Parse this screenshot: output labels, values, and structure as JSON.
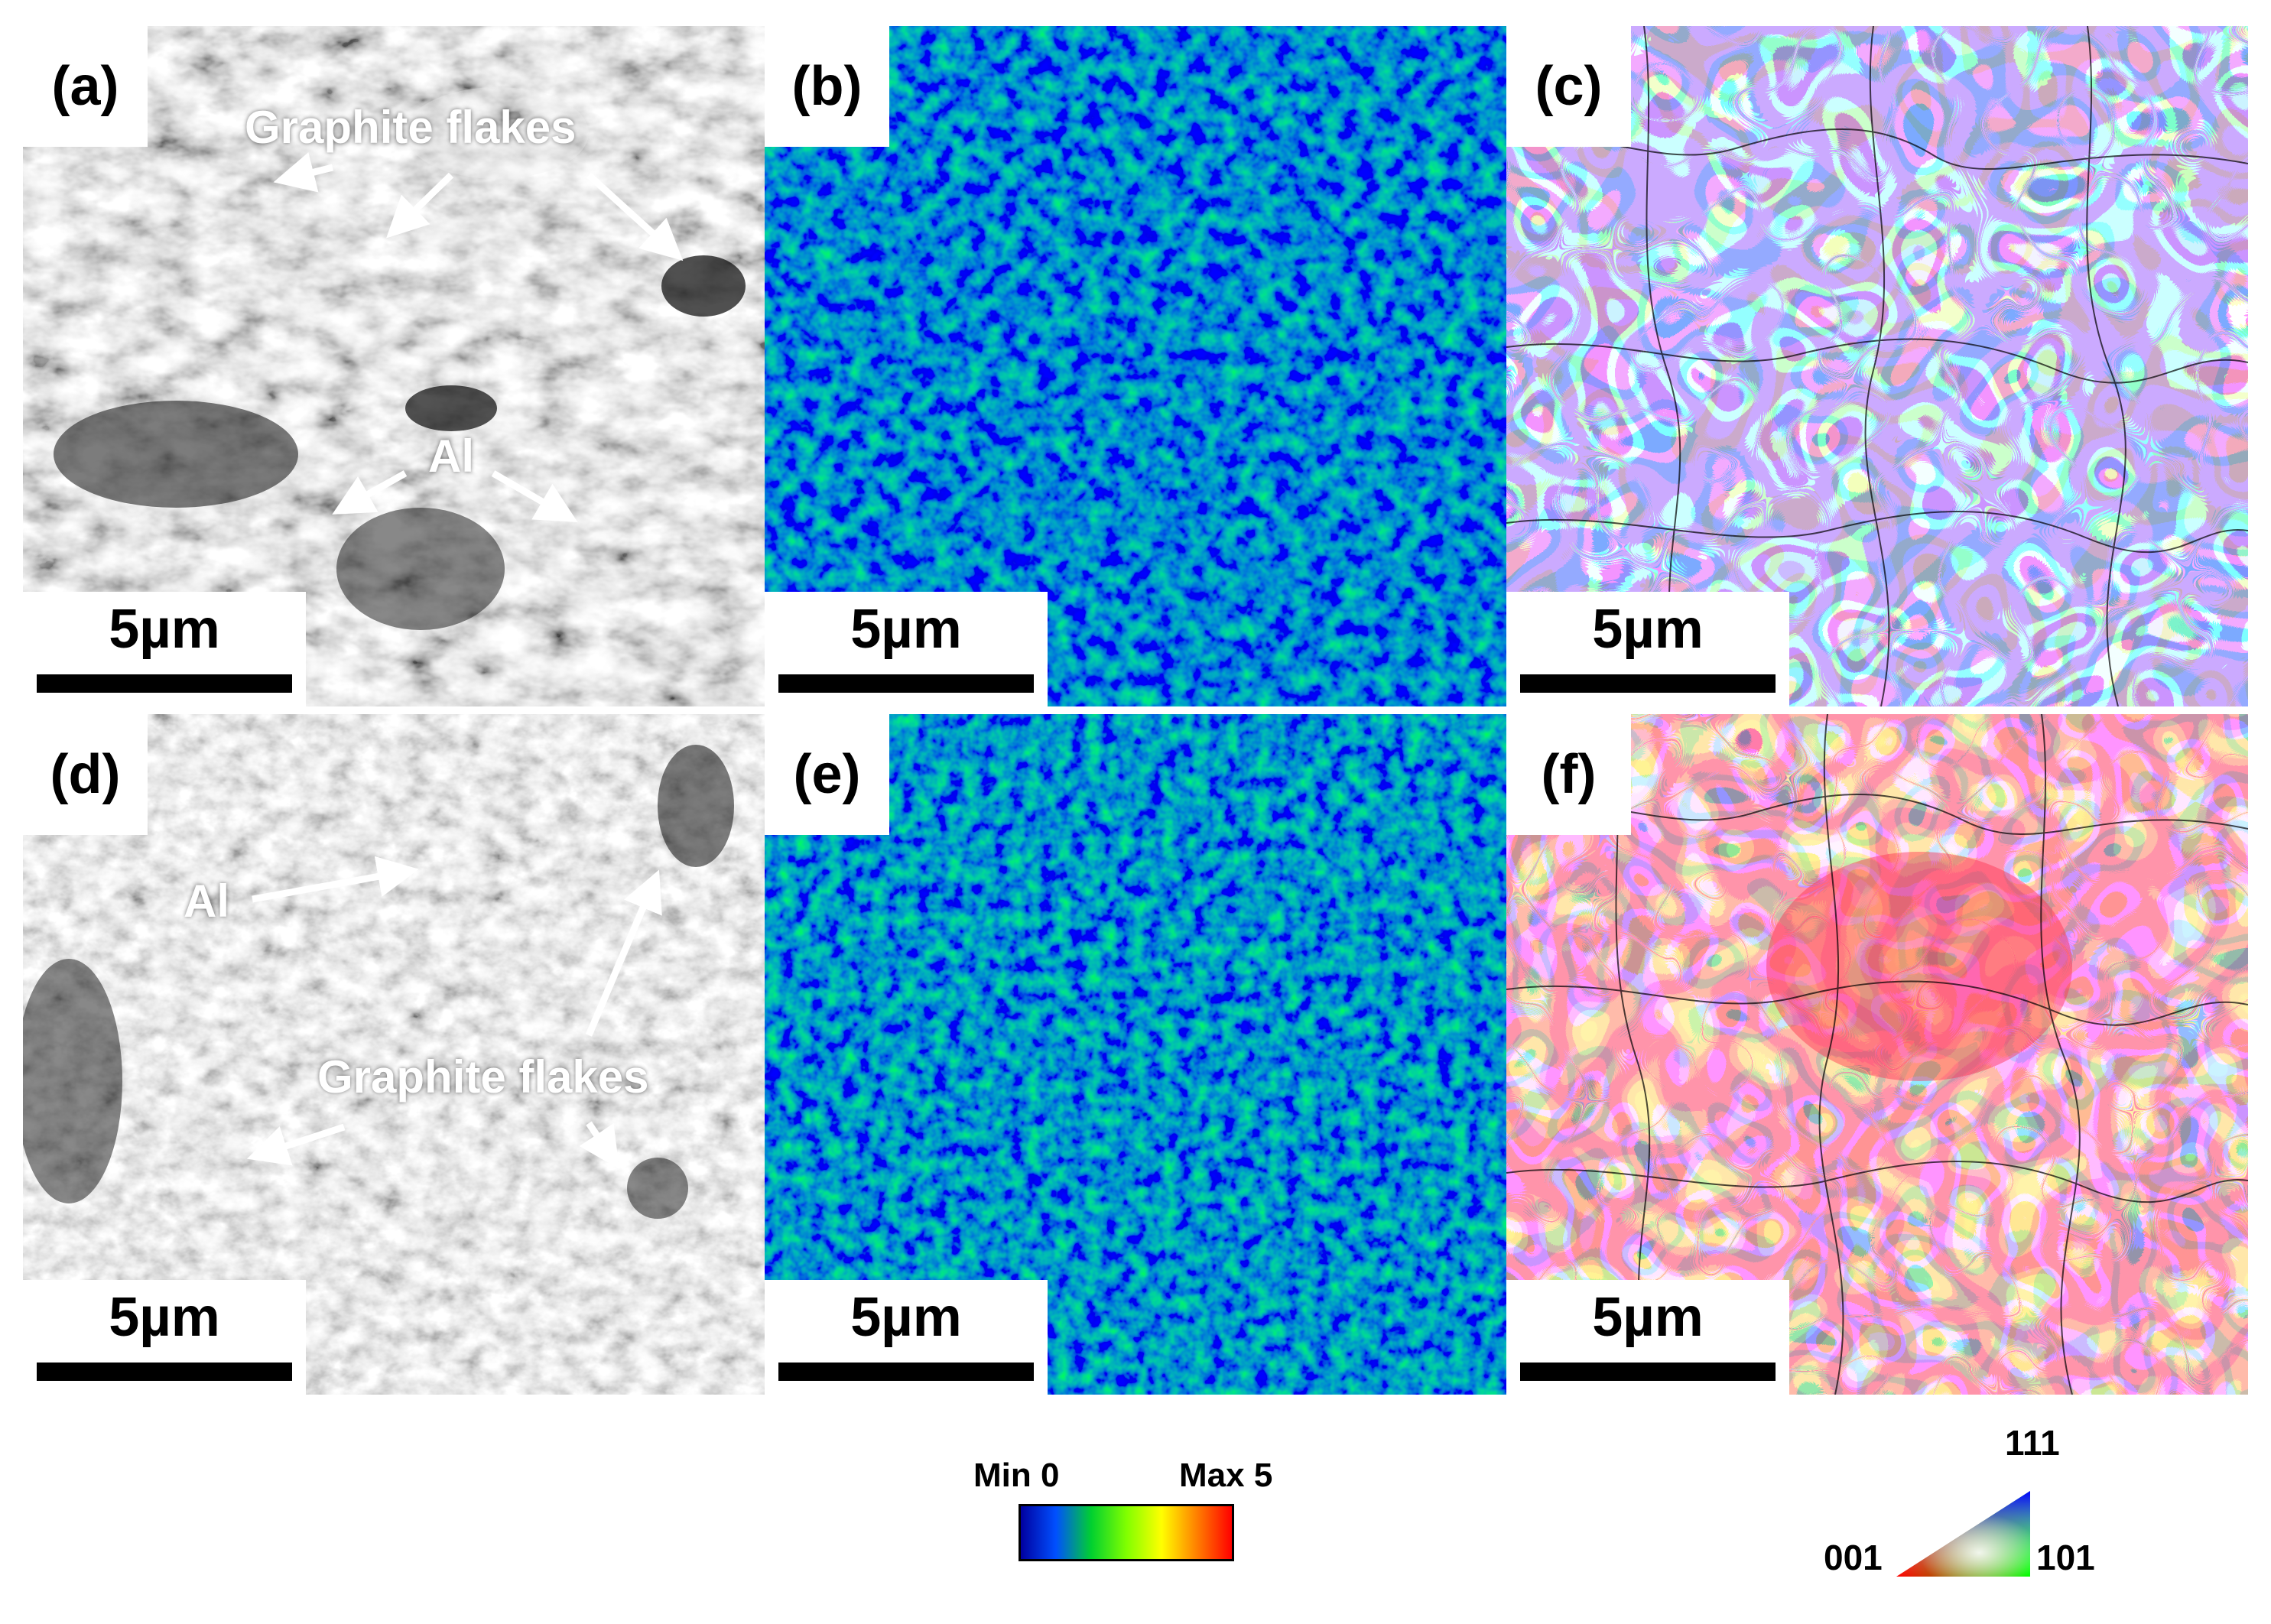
{
  "panels": {
    "a": {
      "label": "(a)",
      "scale_bar": "5µm",
      "annotations": {
        "graphite": "Graphite flakes",
        "al": "Al"
      }
    },
    "b": {
      "label": "(b)",
      "scale_bar": "5µm"
    },
    "c": {
      "label": "(c)",
      "scale_bar": "5µm"
    },
    "d": {
      "label": "(d)",
      "scale_bar": "5µm",
      "annotations": {
        "graphite": "Graphite flakes",
        "al": "Al"
      }
    },
    "e": {
      "label": "(e)",
      "scale_bar": "5µm"
    },
    "f": {
      "label": "(f)",
      "scale_bar": "5µm"
    }
  },
  "colorbar": {
    "min_label": "Min 0",
    "max_label": "Max 5",
    "colors": [
      "#0000a0",
      "#0050ff",
      "#00d030",
      "#80ff00",
      "#ffff00",
      "#ff8000",
      "#ff0000"
    ]
  },
  "ipf_key": {
    "top": "111",
    "left": "001",
    "right": "101",
    "colors": {
      "001": "#ff0000",
      "101": "#00ff00",
      "111": "#0000ff"
    }
  }
}
